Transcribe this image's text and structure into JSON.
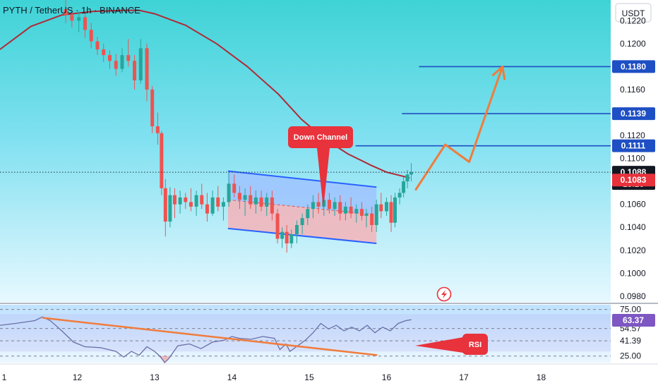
{
  "header": {
    "title": "PYTH / TetherUS · 1h · BINANCE",
    "currency_button": "USDT"
  },
  "colors": {
    "up": "#26a69a",
    "down": "#ef5350",
    "ma": "#b02a37",
    "channel_line": "#2962ff",
    "level_line": "#1e4fc4",
    "projection": "#f07c3c",
    "callout": "#e8323c",
    "rsi_line": "#6a6fa8",
    "rsi_trend": "#f07c3c",
    "last_price": "#131722"
  },
  "price_axis": {
    "ticks": [
      "0.1220",
      "0.1200",
      "0.1180",
      "0.1160",
      "0.1139",
      "0.1120",
      "0.1111",
      "0.1100",
      "0.1088",
      "0.1083",
      "0.1060",
      "0.1040",
      "0.1020",
      "0.1000",
      "0.0980"
    ],
    "tagged": [
      {
        "label": "0.1180",
        "value": 0.118,
        "style": "level"
      },
      {
        "label": "0.1139",
        "value": 0.1139,
        "style": "level"
      },
      {
        "label": "0.1111",
        "value": 0.1111,
        "style": "level"
      },
      {
        "label": "0.1088",
        "value": 0.1088,
        "style": "last"
      },
      {
        "label": "0.1083",
        "value": 0.1083,
        "style": "red"
      }
    ],
    "countdown": "15:16"
  },
  "time_axis": {
    "ticks": [
      "1",
      "12",
      "13",
      "14",
      "15",
      "16",
      "17",
      "18"
    ]
  },
  "rsi_axis": {
    "ticks": [
      "75.00",
      "54.57",
      "41.39",
      "25.00"
    ],
    "current_label": "63.37",
    "current_value": 63.37
  },
  "annotations": {
    "down_channel_label": "Down Channel",
    "rsi_label": "RSI"
  },
  "chart_data": {
    "type": "candlestick",
    "title": "PYTH / TetherUS · 1h · BINANCE",
    "ylim": [
      0.0975,
      0.1238
    ],
    "x_range_days": [
      11.0,
      18.9
    ],
    "last_price": 0.1088,
    "ma_price": 0.1083,
    "ma": [
      [
        11.0,
        0.1195
      ],
      [
        11.4,
        0.1215
      ],
      [
        11.8,
        0.1225
      ],
      [
        12.2,
        0.1228
      ],
      [
        12.6,
        0.1229
      ],
      [
        12.8,
        0.1229
      ],
      [
        13.0,
        0.1226
      ],
      [
        13.4,
        0.1216
      ],
      [
        13.8,
        0.12
      ],
      [
        14.2,
        0.118
      ],
      [
        14.6,
        0.1156
      ],
      [
        14.9,
        0.1134
      ],
      [
        15.2,
        0.1117
      ],
      [
        15.5,
        0.1104
      ],
      [
        15.8,
        0.1094
      ],
      [
        16.0,
        0.1088
      ],
      [
        16.3,
        0.1083
      ]
    ],
    "candles": [
      [
        11.85,
        0.123,
        0.124,
        0.1218,
        0.1225
      ],
      [
        11.93,
        0.1225,
        0.123,
        0.1214,
        0.122
      ],
      [
        12.02,
        0.122,
        0.1228,
        0.121,
        0.1223
      ],
      [
        12.1,
        0.1223,
        0.1226,
        0.1205,
        0.1212
      ],
      [
        12.18,
        0.1212,
        0.1218,
        0.1196,
        0.1202
      ],
      [
        12.26,
        0.1202,
        0.1206,
        0.119,
        0.1195
      ],
      [
        12.34,
        0.1195,
        0.12,
        0.1184,
        0.119
      ],
      [
        12.42,
        0.119,
        0.1194,
        0.1178,
        0.1185
      ],
      [
        12.5,
        0.1185,
        0.1191,
        0.1172,
        0.1178
      ],
      [
        12.58,
        0.1178,
        0.1196,
        0.1175,
        0.119
      ],
      [
        12.66,
        0.119,
        0.1204,
        0.118,
        0.1185
      ],
      [
        12.74,
        0.1185,
        0.119,
        0.116,
        0.1168
      ],
      [
        12.82,
        0.1168,
        0.1204,
        0.1165,
        0.1196
      ],
      [
        12.9,
        0.1196,
        0.12,
        0.115,
        0.116
      ],
      [
        12.97,
        0.116,
        0.1163,
        0.1122,
        0.1128
      ],
      [
        13.04,
        0.1128,
        0.114,
        0.1112,
        0.1122
      ],
      [
        13.09,
        0.1122,
        0.1124,
        0.1068,
        0.1074
      ],
      [
        13.14,
        0.1074,
        0.1082,
        0.1032,
        0.1045
      ],
      [
        13.2,
        0.1045,
        0.1075,
        0.104,
        0.1068
      ],
      [
        13.26,
        0.1068,
        0.1074,
        0.1048,
        0.106
      ],
      [
        13.33,
        0.106,
        0.1072,
        0.1052,
        0.1066
      ],
      [
        13.4,
        0.1066,
        0.107,
        0.1056,
        0.1062
      ],
      [
        13.47,
        0.1062,
        0.1074,
        0.1054,
        0.1058
      ],
      [
        13.54,
        0.1058,
        0.1072,
        0.105,
        0.1068
      ],
      [
        13.61,
        0.1068,
        0.1078,
        0.1056,
        0.106
      ],
      [
        13.68,
        0.106,
        0.107,
        0.1045,
        0.1052
      ],
      [
        13.75,
        0.1052,
        0.1072,
        0.105,
        0.1066
      ],
      [
        13.82,
        0.1066,
        0.1076,
        0.1054,
        0.1058
      ],
      [
        13.89,
        0.1058,
        0.1066,
        0.1046,
        0.1062
      ],
      [
        13.96,
        0.1062,
        0.1088,
        0.1058,
        0.1078
      ],
      [
        14.03,
        0.1078,
        0.1086,
        0.1066,
        0.107
      ],
      [
        14.1,
        0.107,
        0.1076,
        0.1056,
        0.1064
      ],
      [
        14.17,
        0.1064,
        0.1074,
        0.105,
        0.1068
      ],
      [
        14.24,
        0.1068,
        0.1076,
        0.1056,
        0.106
      ],
      [
        14.31,
        0.106,
        0.1072,
        0.1052,
        0.1066
      ],
      [
        14.38,
        0.1066,
        0.1072,
        0.1054,
        0.1058
      ],
      [
        14.45,
        0.1058,
        0.107,
        0.105,
        0.1066
      ],
      [
        14.52,
        0.1066,
        0.1072,
        0.1046,
        0.1052
      ],
      [
        14.59,
        0.1052,
        0.1056,
        0.1026,
        0.103
      ],
      [
        14.65,
        0.103,
        0.104,
        0.1022,
        0.1036
      ],
      [
        14.71,
        0.1036,
        0.1042,
        0.1018,
        0.1026
      ],
      [
        14.77,
        0.1026,
        0.1038,
        0.1022,
        0.1034
      ],
      [
        14.84,
        0.1034,
        0.1046,
        0.1026,
        0.1042
      ],
      [
        14.91,
        0.1042,
        0.1052,
        0.1034,
        0.1048
      ],
      [
        14.98,
        0.1048,
        0.106,
        0.1042,
        0.1056
      ],
      [
        15.05,
        0.1056,
        0.1068,
        0.1048,
        0.1062
      ],
      [
        15.12,
        0.1062,
        0.107,
        0.1052,
        0.1058
      ],
      [
        15.19,
        0.1058,
        0.1068,
        0.105,
        0.1064
      ],
      [
        15.26,
        0.1064,
        0.107,
        0.1052,
        0.1056
      ],
      [
        15.33,
        0.1056,
        0.1066,
        0.105,
        0.1062
      ],
      [
        15.4,
        0.1062,
        0.1068,
        0.1046,
        0.1052
      ],
      [
        15.47,
        0.1052,
        0.1062,
        0.1046,
        0.1058
      ],
      [
        15.54,
        0.1058,
        0.1066,
        0.1048,
        0.1052
      ],
      [
        15.61,
        0.1052,
        0.106,
        0.1044,
        0.1056
      ],
      [
        15.68,
        0.1056,
        0.1062,
        0.1046,
        0.105
      ],
      [
        15.74,
        0.105,
        0.1056,
        0.104,
        0.1052
      ],
      [
        15.81,
        0.1052,
        0.1058,
        0.1036,
        0.1042
      ],
      [
        15.87,
        0.1042,
        0.1064,
        0.1036,
        0.106
      ],
      [
        15.93,
        0.106,
        0.107,
        0.1048,
        0.1054
      ],
      [
        16.0,
        0.1054,
        0.1066,
        0.105,
        0.1062
      ],
      [
        16.06,
        0.1062,
        0.1068,
        0.1036,
        0.1044
      ],
      [
        16.11,
        0.1044,
        0.107,
        0.104,
        0.1066
      ],
      [
        16.17,
        0.1066,
        0.1074,
        0.106,
        0.107
      ],
      [
        16.22,
        0.107,
        0.1084,
        0.1066,
        0.108
      ],
      [
        16.27,
        0.108,
        0.109,
        0.1074,
        0.1086
      ],
      [
        16.32,
        0.1086,
        0.1096,
        0.108,
        0.1088
      ]
    ],
    "down_channel": {
      "upper": [
        [
          13.95,
          0.1089
        ],
        [
          15.87,
          0.1075
        ]
      ],
      "mid": [
        [
          13.95,
          0.1064
        ],
        [
          15.87,
          0.1051
        ]
      ],
      "lower": [
        [
          13.95,
          0.1039
        ],
        [
          15.87,
          0.1026
        ]
      ]
    },
    "levels": [
      {
        "value": 0.118,
        "from_day": 16.42
      },
      {
        "value": 0.1139,
        "from_day": 16.2
      },
      {
        "value": 0.1111,
        "from_day": 15.6
      }
    ],
    "projection_path": [
      [
        16.38,
        0.1073
      ],
      [
        16.76,
        0.1112
      ],
      [
        17.07,
        0.1097
      ],
      [
        17.5,
        0.118
      ]
    ],
    "rsi": {
      "ylim": [
        18,
        80
      ],
      "values": [
        [
          11.0,
          58
        ],
        [
          11.2,
          60
        ],
        [
          11.45,
          63
        ],
        [
          11.55,
          67
        ],
        [
          11.65,
          63
        ],
        [
          11.8,
          52
        ],
        [
          11.95,
          40
        ],
        [
          12.1,
          35
        ],
        [
          12.3,
          34
        ],
        [
          12.5,
          30
        ],
        [
          12.6,
          24
        ],
        [
          12.7,
          30
        ],
        [
          12.8,
          26
        ],
        [
          12.9,
          35
        ],
        [
          13.0,
          30
        ],
        [
          13.08,
          24
        ],
        [
          13.13,
          18
        ],
        [
          13.18,
          22
        ],
        [
          13.3,
          36
        ],
        [
          13.45,
          38
        ],
        [
          13.6,
          33
        ],
        [
          13.75,
          40
        ],
        [
          13.9,
          42
        ],
        [
          14.0,
          46
        ],
        [
          14.1,
          44
        ],
        [
          14.25,
          43
        ],
        [
          14.4,
          46
        ],
        [
          14.55,
          44
        ],
        [
          14.62,
          32
        ],
        [
          14.7,
          38
        ],
        [
          14.75,
          30
        ],
        [
          14.85,
          36
        ],
        [
          14.95,
          42
        ],
        [
          15.05,
          50
        ],
        [
          15.15,
          60
        ],
        [
          15.25,
          54
        ],
        [
          15.35,
          58
        ],
        [
          15.45,
          52
        ],
        [
          15.55,
          56
        ],
        [
          15.65,
          52
        ],
        [
          15.75,
          58
        ],
        [
          15.85,
          50
        ],
        [
          15.95,
          56
        ],
        [
          16.05,
          52
        ],
        [
          16.15,
          60
        ],
        [
          16.25,
          63
        ],
        [
          16.32,
          64
        ]
      ],
      "trendline": [
        [
          11.55,
          66
        ],
        [
          15.88,
          26
        ]
      ]
    }
  }
}
